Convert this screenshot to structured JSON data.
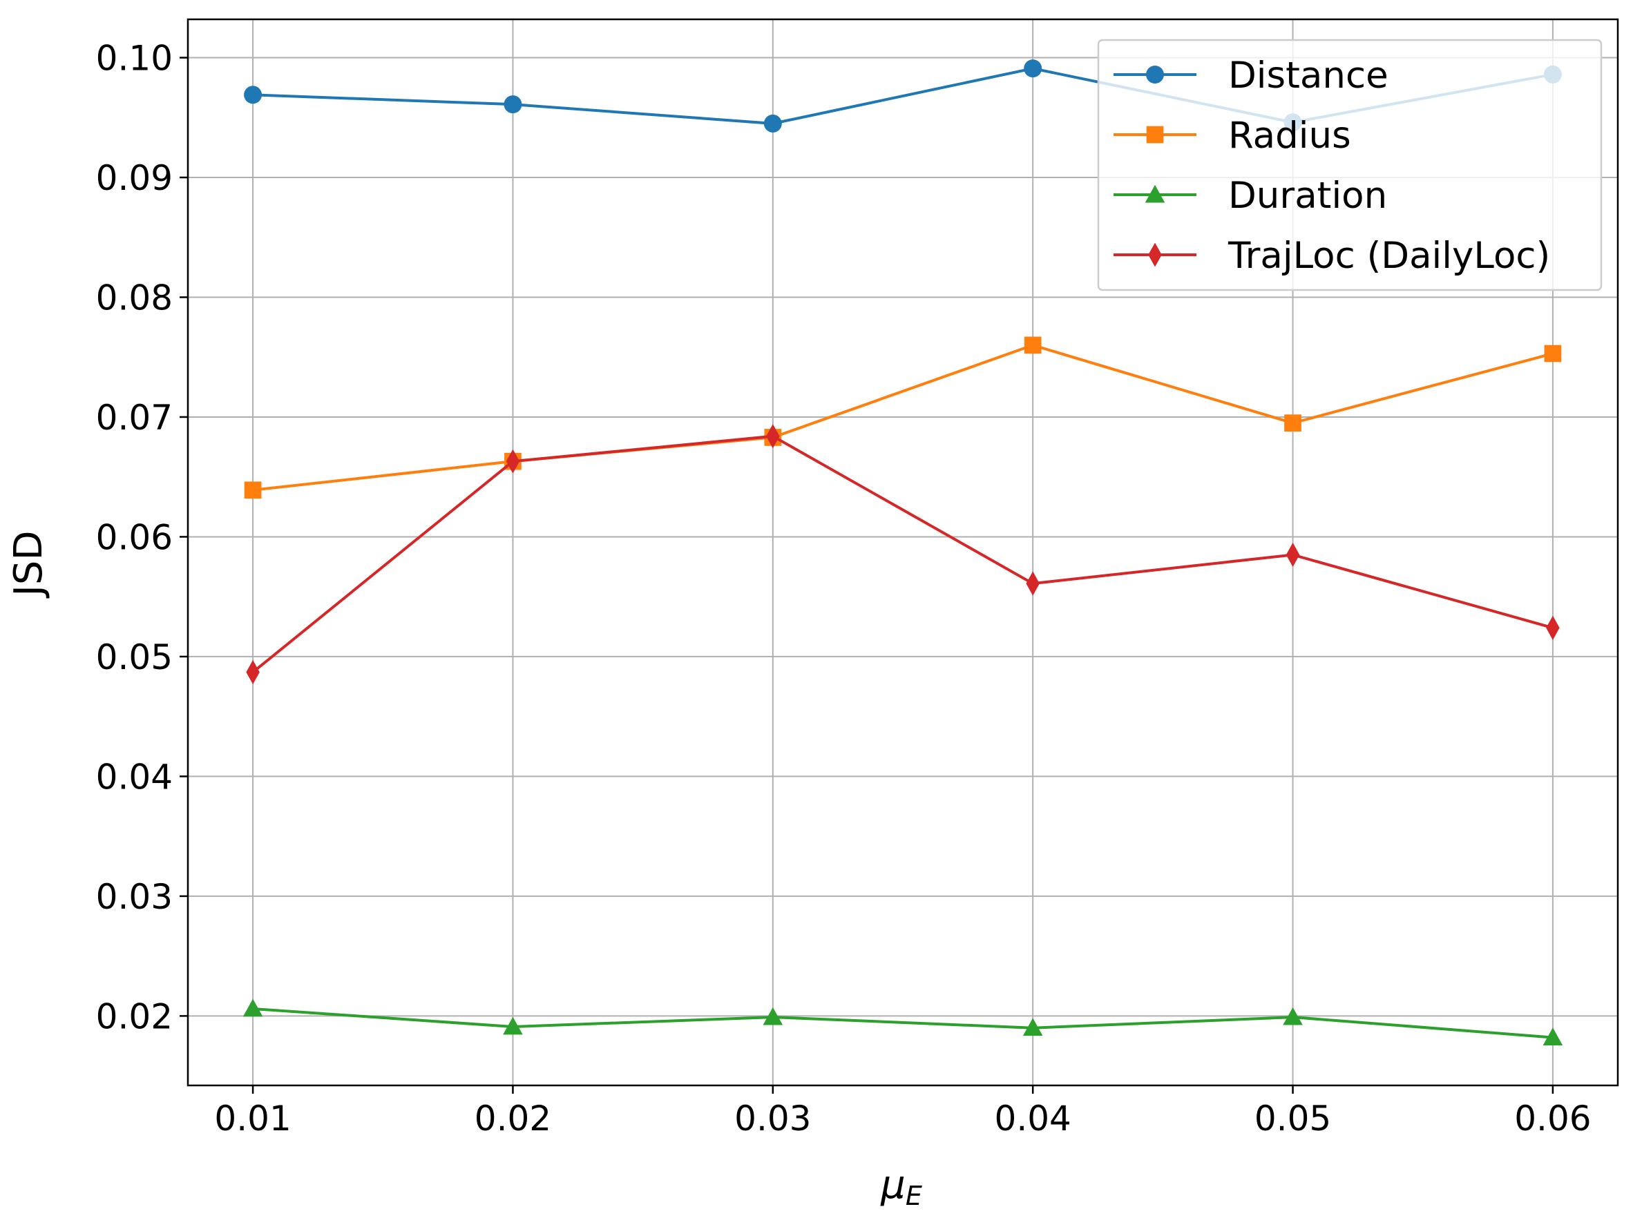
{
  "chart_data": {
    "type": "line",
    "x": [
      0.01,
      0.02,
      0.03,
      0.04,
      0.05,
      0.06
    ],
    "x_ticks": [
      "0.01",
      "0.02",
      "0.03",
      "0.04",
      "0.05",
      "0.06"
    ],
    "y_ticks": [
      "0.02",
      "0.03",
      "0.04",
      "0.05",
      "0.06",
      "0.07",
      "0.08",
      "0.09",
      "0.10"
    ],
    "y_tick_values": [
      0.02,
      0.03,
      0.04,
      0.05,
      0.06,
      0.07,
      0.08,
      0.09,
      0.1
    ],
    "xlim": [
      0.0075,
      0.0625
    ],
    "ylim": [
      0.0142,
      0.1032
    ],
    "xlabel_main": "μ",
    "xlabel_sub": "E",
    "ylabel": "JSD",
    "grid": true,
    "legend_position": "top-right",
    "series": [
      {
        "name": "Distance",
        "color": "#1f77b4",
        "marker": "circle",
        "values": [
          0.0969,
          0.0961,
          0.0945,
          0.0991,
          0.0946,
          0.0986
        ]
      },
      {
        "name": "Radius",
        "color": "#ff7f0e",
        "marker": "square",
        "values": [
          0.0639,
          0.0663,
          0.0683,
          0.076,
          0.0695,
          0.0753
        ]
      },
      {
        "name": "Duration",
        "color": "#2ca02c",
        "marker": "triangle",
        "values": [
          0.0206,
          0.0191,
          0.0199,
          0.019,
          0.0199,
          0.0182
        ]
      },
      {
        "name": "TrajLoc (DailyLoc)",
        "color": "#d62728",
        "marker": "diamond",
        "values": [
          0.0487,
          0.0663,
          0.0684,
          0.0561,
          0.0585,
          0.0524
        ]
      }
    ]
  }
}
